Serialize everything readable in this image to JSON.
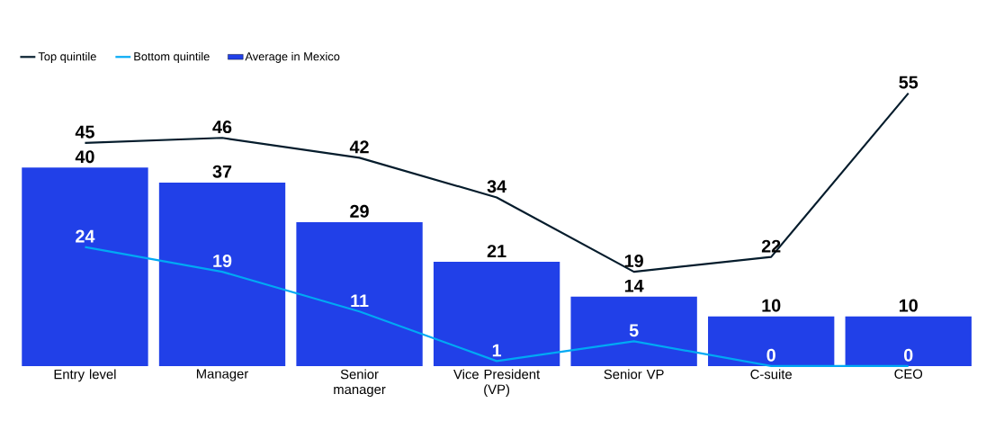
{
  "chart_data": {
    "type": "bar",
    "categories": [
      "Entry level",
      "Manager",
      "Senior manager",
      "Vice President (VP)",
      "Senior VP",
      "C-suite",
      "CEO"
    ],
    "series": [
      {
        "name": "Top quintile",
        "type": "line",
        "color": "#051c2c",
        "values": [
          45,
          46,
          42,
          34,
          19,
          22,
          55
        ]
      },
      {
        "name": "Bottom quintile",
        "type": "line",
        "color": "#00a9f4",
        "values": [
          24,
          19,
          11,
          1,
          5,
          0,
          0
        ]
      },
      {
        "name": "Average in Mexico",
        "color": "#2140e8",
        "values": [
          40,
          37,
          29,
          21,
          14,
          10,
          10
        ]
      }
    ],
    "data_labels": true,
    "legend": "top left",
    "marker": "none"
  }
}
